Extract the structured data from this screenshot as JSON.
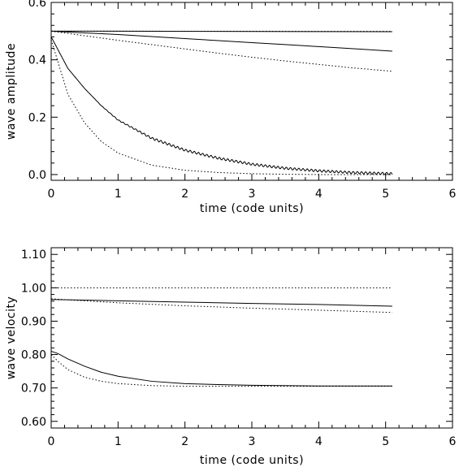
{
  "chart_data": [
    {
      "type": "line",
      "xlabel": "time (code units)",
      "ylabel": "wave amplitude",
      "xlim": [
        0,
        6
      ],
      "ylim": [
        -0.02,
        0.6
      ],
      "grid": false,
      "legend": "none",
      "xticks": [
        "0",
        "1",
        "2",
        "3",
        "4",
        "5",
        "6"
      ],
      "yticks": [
        "0.0",
        "0.2",
        "0.4",
        "0.6"
      ],
      "series": [
        {
          "style": "solid",
          "x": [
            0,
            5.1
          ],
          "y": [
            0.5,
            0.498
          ]
        },
        {
          "style": "dotted",
          "x": [
            0,
            5.1
          ],
          "y": [
            0.5,
            0.499
          ]
        },
        {
          "style": "solid",
          "x": [
            0,
            0.5,
            1,
            1.5,
            2,
            2.5,
            3,
            3.5,
            4,
            4.5,
            5.1
          ],
          "y": [
            0.5,
            0.494,
            0.488,
            0.481,
            0.474,
            0.467,
            0.46,
            0.453,
            0.446,
            0.439,
            0.43
          ]
        },
        {
          "style": "dotted",
          "x": [
            0,
            0.5,
            1,
            1.5,
            2,
            2.5,
            3,
            3.5,
            4,
            4.5,
            5.1
          ],
          "y": [
            0.5,
            0.484,
            0.468,
            0.453,
            0.438,
            0.423,
            0.409,
            0.396,
            0.384,
            0.372,
            0.36
          ]
        },
        {
          "style": "solid",
          "oscillating": true,
          "x": [
            0,
            0.25,
            0.5,
            0.75,
            1,
            1.5,
            2,
            2.5,
            3,
            3.5,
            4,
            4.5,
            5.1
          ],
          "y": [
            0.48,
            0.37,
            0.3,
            0.24,
            0.19,
            0.127,
            0.085,
            0.057,
            0.036,
            0.022,
            0.013,
            0.007,
            0.003
          ]
        },
        {
          "style": "dotted",
          "x": [
            0,
            0.25,
            0.5,
            0.75,
            1,
            1.5,
            2,
            2.5,
            3,
            3.5,
            4,
            5.1
          ],
          "y": [
            0.47,
            0.28,
            0.18,
            0.115,
            0.075,
            0.033,
            0.015,
            0.007,
            0.003,
            0.001,
            0.0,
            0.0
          ]
        }
      ]
    },
    {
      "type": "line",
      "xlabel": "time (code units)",
      "ylabel": "wave velocity",
      "xlim": [
        0,
        6
      ],
      "ylim": [
        0.58,
        1.12
      ],
      "grid": false,
      "legend": "none",
      "xticks": [
        "0",
        "1",
        "2",
        "3",
        "4",
        "5",
        "6"
      ],
      "yticks": [
        "0.60",
        "0.70",
        "0.80",
        "0.90",
        "1.00",
        "1.10"
      ],
      "series": [
        {
          "style": "dotted",
          "x": [
            0,
            5.1
          ],
          "y": [
            1.0,
            1.0
          ]
        },
        {
          "style": "solid",
          "x": [
            0,
            1,
            2,
            3,
            4,
            5.1
          ],
          "y": [
            0.965,
            0.961,
            0.957,
            0.953,
            0.95,
            0.945
          ]
        },
        {
          "style": "dotted",
          "x": [
            0,
            0.5,
            1,
            2,
            3,
            4,
            5.1
          ],
          "y": [
            0.967,
            0.961,
            0.955,
            0.946,
            0.939,
            0.933,
            0.926
          ]
        },
        {
          "style": "solid",
          "x": [
            0,
            0.1,
            0.25,
            0.5,
            0.75,
            1,
            1.5,
            2,
            2.5,
            3,
            4,
            5.1
          ],
          "y": [
            0.81,
            0.803,
            0.787,
            0.765,
            0.747,
            0.735,
            0.72,
            0.713,
            0.71,
            0.708,
            0.706,
            0.706
          ]
        },
        {
          "style": "dotted",
          "x": [
            0,
            0.1,
            0.25,
            0.5,
            0.75,
            1,
            1.5,
            2,
            2.5,
            3,
            5.1
          ],
          "y": [
            0.8,
            0.78,
            0.755,
            0.732,
            0.72,
            0.713,
            0.707,
            0.705,
            0.705,
            0.705,
            0.705
          ]
        }
      ]
    }
  ]
}
